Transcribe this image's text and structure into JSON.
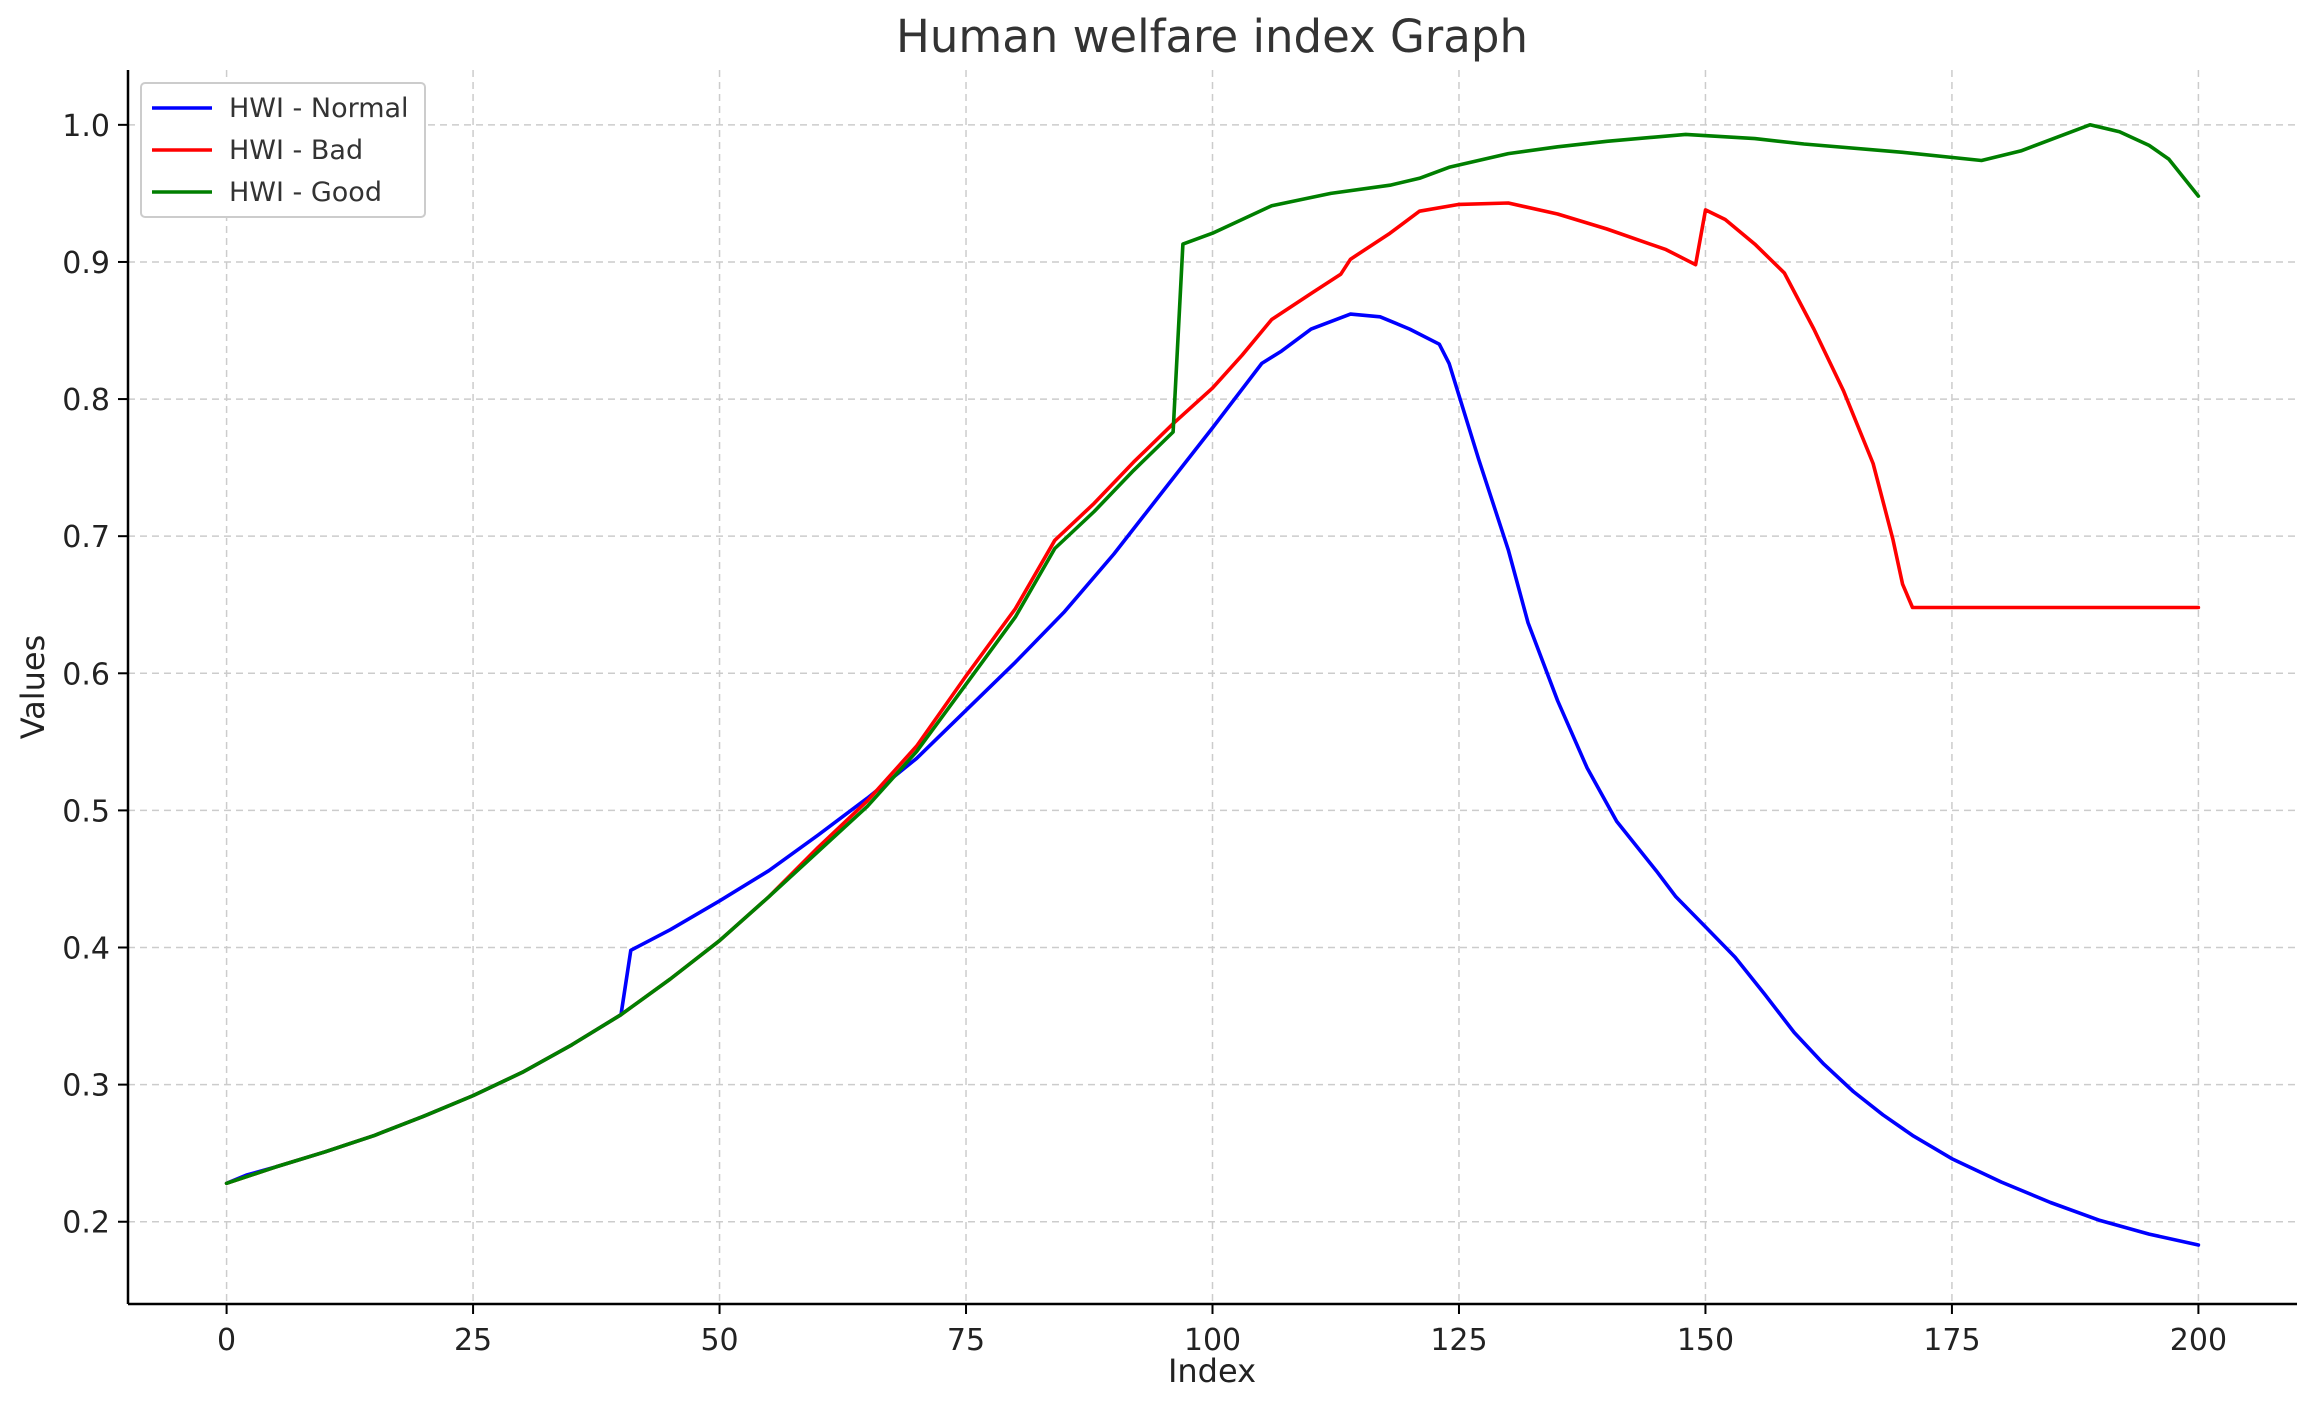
{
  "chart_data": {
    "type": "line",
    "title": "Human welfare index Graph",
    "xlabel": "Index",
    "ylabel": "Values",
    "xlim": [
      -10,
      210
    ],
    "ylim": [
      0.14,
      1.04
    ],
    "xticks": [
      0,
      25,
      50,
      75,
      100,
      125,
      150,
      175,
      200
    ],
    "yticks": [
      0.2,
      0.3,
      0.4,
      0.5,
      0.6,
      0.7,
      0.8,
      0.9,
      1.0
    ],
    "xtick_labels": [
      "0",
      "25",
      "50",
      "75",
      "100",
      "125",
      "150",
      "175",
      "200"
    ],
    "ytick_labels": [
      "0.2",
      "0.3",
      "0.4",
      "0.5",
      "0.6",
      "0.7",
      "0.8",
      "0.9",
      "1.0"
    ],
    "grid": true,
    "legend_position": "top-left",
    "series": [
      {
        "name": "HWI - Normal",
        "color": "#0000ff",
        "points": [
          [
            0,
            0.228
          ],
          [
            2,
            0.234
          ],
          [
            5,
            0.24
          ],
          [
            10,
            0.251
          ],
          [
            15,
            0.263
          ],
          [
            20,
            0.277
          ],
          [
            25,
            0.292
          ],
          [
            30,
            0.309
          ],
          [
            35,
            0.329
          ],
          [
            40,
            0.351
          ],
          [
            41,
            0.398
          ],
          [
            45,
            0.413
          ],
          [
            50,
            0.434
          ],
          [
            55,
            0.456
          ],
          [
            60,
            0.482
          ],
          [
            65,
            0.509
          ],
          [
            70,
            0.538
          ],
          [
            75,
            0.573
          ],
          [
            80,
            0.608
          ],
          [
            85,
            0.645
          ],
          [
            90,
            0.687
          ],
          [
            95,
            0.733
          ],
          [
            100,
            0.779
          ],
          [
            105,
            0.826
          ],
          [
            107,
            0.835
          ],
          [
            110,
            0.851
          ],
          [
            114,
            0.862
          ],
          [
            117,
            0.86
          ],
          [
            120,
            0.851
          ],
          [
            123,
            0.84
          ],
          [
            124,
            0.826
          ],
          [
            127,
            0.756
          ],
          [
            130,
            0.69
          ],
          [
            132,
            0.637
          ],
          [
            135,
            0.58
          ],
          [
            138,
            0.531
          ],
          [
            141,
            0.492
          ],
          [
            145,
            0.456
          ],
          [
            147,
            0.437
          ],
          [
            150,
            0.415
          ],
          [
            153,
            0.393
          ],
          [
            156,
            0.366
          ],
          [
            159,
            0.338
          ],
          [
            162,
            0.315
          ],
          [
            165,
            0.295
          ],
          [
            168,
            0.278
          ],
          [
            171,
            0.263
          ],
          [
            175,
            0.246
          ],
          [
            180,
            0.229
          ],
          [
            185,
            0.214
          ],
          [
            190,
            0.201
          ],
          [
            195,
            0.191
          ],
          [
            200,
            0.183
          ]
        ]
      },
      {
        "name": "HWI - Bad",
        "color": "#ff0000",
        "points": [
          [
            0,
            0.228
          ],
          [
            5,
            0.24
          ],
          [
            10,
            0.251
          ],
          [
            15,
            0.263
          ],
          [
            20,
            0.277
          ],
          [
            25,
            0.292
          ],
          [
            30,
            0.309
          ],
          [
            35,
            0.329
          ],
          [
            40,
            0.351
          ],
          [
            45,
            0.377
          ],
          [
            50,
            0.405
          ],
          [
            55,
            0.437
          ],
          [
            60,
            0.473
          ],
          [
            65,
            0.507
          ],
          [
            70,
            0.547
          ],
          [
            75,
            0.598
          ],
          [
            80,
            0.647
          ],
          [
            84,
            0.697
          ],
          [
            88,
            0.724
          ],
          [
            92,
            0.754
          ],
          [
            96,
            0.782
          ],
          [
            100,
            0.808
          ],
          [
            103,
            0.832
          ],
          [
            106,
            0.858
          ],
          [
            110,
            0.877
          ],
          [
            113,
            0.891
          ],
          [
            114,
            0.902
          ],
          [
            118,
            0.921
          ],
          [
            121,
            0.937
          ],
          [
            125,
            0.942
          ],
          [
            130,
            0.943
          ],
          [
            135,
            0.935
          ],
          [
            140,
            0.924
          ],
          [
            146,
            0.909
          ],
          [
            149,
            0.898
          ],
          [
            150,
            0.938
          ],
          [
            152,
            0.931
          ],
          [
            155,
            0.913
          ],
          [
            158,
            0.892
          ],
          [
            161,
            0.851
          ],
          [
            164,
            0.806
          ],
          [
            167,
            0.753
          ],
          [
            169,
            0.698
          ],
          [
            170,
            0.665
          ],
          [
            171,
            0.648
          ],
          [
            175,
            0.648
          ],
          [
            180,
            0.648
          ],
          [
            190,
            0.648
          ],
          [
            200,
            0.648
          ]
        ]
      },
      {
        "name": "HWI - Good",
        "color": "#007f00",
        "points": [
          [
            0,
            0.228
          ],
          [
            5,
            0.24
          ],
          [
            10,
            0.251
          ],
          [
            15,
            0.263
          ],
          [
            20,
            0.277
          ],
          [
            25,
            0.292
          ],
          [
            30,
            0.309
          ],
          [
            35,
            0.329
          ],
          [
            40,
            0.351
          ],
          [
            45,
            0.377
          ],
          [
            50,
            0.405
          ],
          [
            55,
            0.437
          ],
          [
            60,
            0.47
          ],
          [
            65,
            0.503
          ],
          [
            70,
            0.543
          ],
          [
            75,
            0.592
          ],
          [
            80,
            0.641
          ],
          [
            84,
            0.691
          ],
          [
            88,
            0.718
          ],
          [
            92,
            0.748
          ],
          [
            96,
            0.776
          ],
          [
            97,
            0.913
          ],
          [
            100,
            0.921
          ],
          [
            106,
            0.941
          ],
          [
            112,
            0.95
          ],
          [
            118,
            0.956
          ],
          [
            121,
            0.961
          ],
          [
            124,
            0.969
          ],
          [
            130,
            0.979
          ],
          [
            135,
            0.984
          ],
          [
            140,
            0.988
          ],
          [
            148,
            0.993
          ],
          [
            155,
            0.99
          ],
          [
            160,
            0.986
          ],
          [
            170,
            0.98
          ],
          [
            178,
            0.974
          ],
          [
            182,
            0.981
          ],
          [
            189,
            1.0
          ],
          [
            192,
            0.995
          ],
          [
            195,
            0.985
          ],
          [
            197,
            0.975
          ],
          [
            200,
            0.948
          ]
        ]
      }
    ]
  }
}
